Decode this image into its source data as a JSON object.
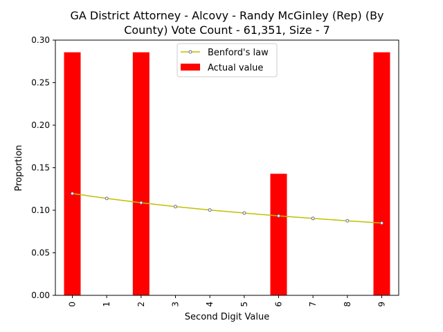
{
  "chart_data": {
    "type": "bar",
    "title_line1": "GA District Attorney - Alcovy - Randy McGinley (Rep) (By",
    "title_line2": "County) Vote Count - 61,351, Size - 7",
    "xlabel": "Second Digit Value",
    "ylabel": "Proportion",
    "categories": [
      "0",
      "1",
      "2",
      "3",
      "4",
      "5",
      "6",
      "7",
      "8",
      "9"
    ],
    "series": [
      {
        "name": "Actual value",
        "type": "bar",
        "color": "#ff0000",
        "values": [
          0.2857,
          0,
          0.2857,
          0,
          0,
          0,
          0.1429,
          0,
          0,
          0.2857
        ]
      },
      {
        "name": "Benford's law",
        "type": "line",
        "color": "#bfbf00",
        "marker_edge": "#6b6b8a",
        "values": [
          0.1197,
          0.1139,
          0.1088,
          0.1043,
          0.1003,
          0.0967,
          0.0934,
          0.0904,
          0.0876,
          0.085
        ]
      }
    ],
    "ylim": [
      0,
      0.3
    ],
    "yticks": [
      "0.00",
      "0.05",
      "0.10",
      "0.15",
      "0.20",
      "0.25",
      "0.30"
    ],
    "legend_position": "top-center",
    "grid": false
  }
}
